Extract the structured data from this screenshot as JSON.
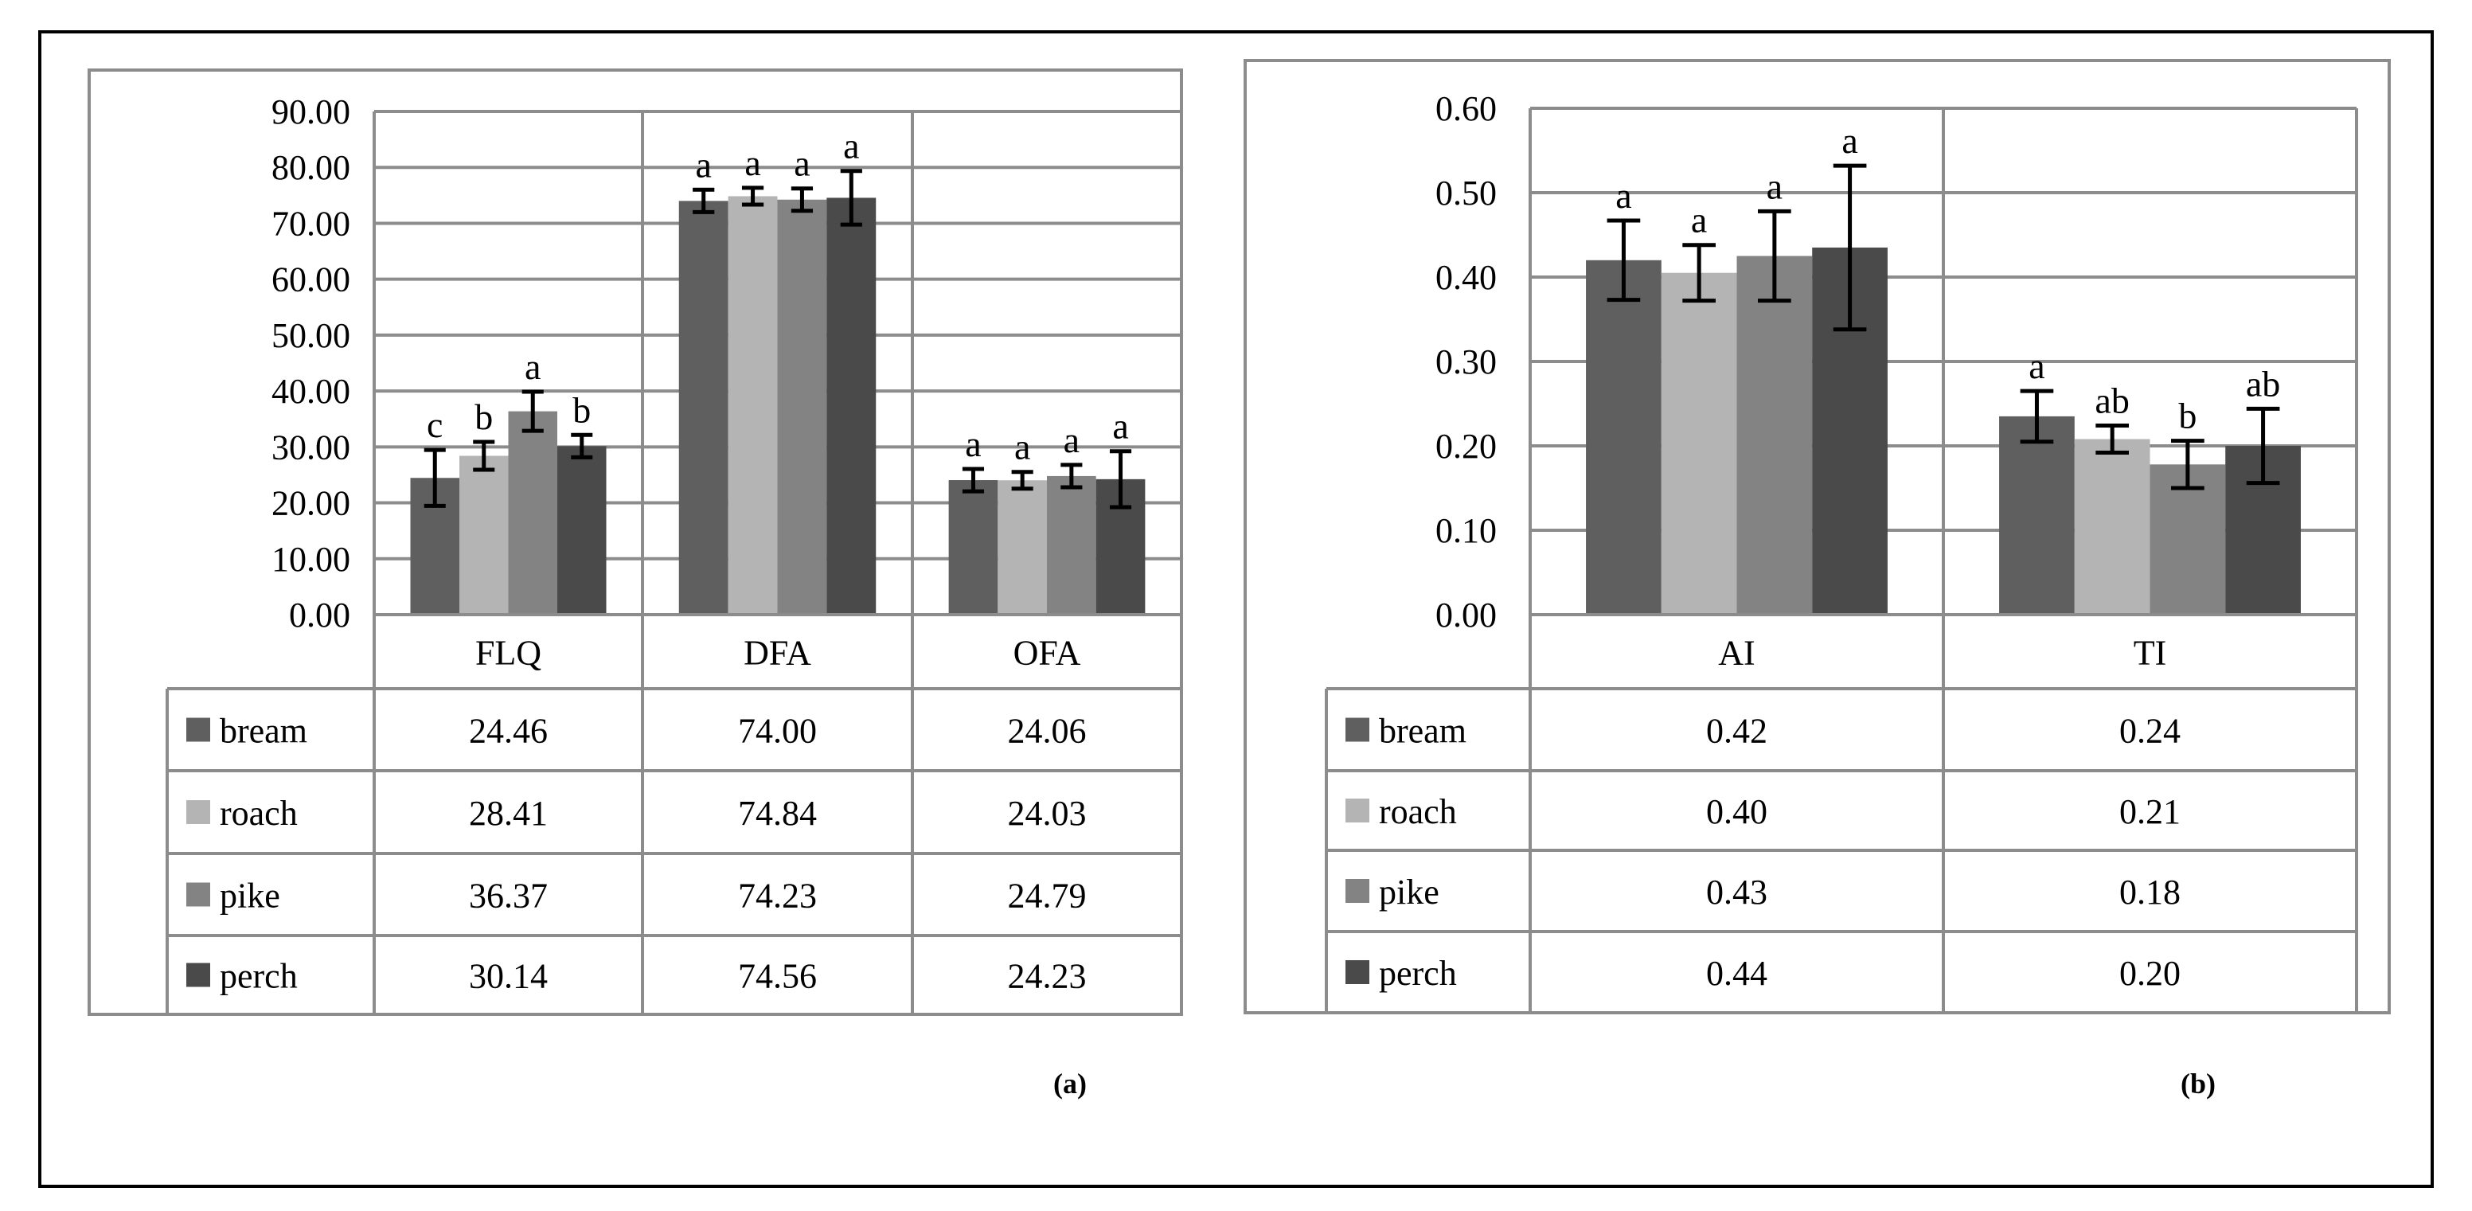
{
  "colors": {
    "bream": "#5f5f5f",
    "roach": "#b4b4b4",
    "pike": "#838383",
    "perch": "#4a4a4a",
    "grid": "#8c8c8c",
    "text": "#000000"
  },
  "chart_data": [
    {
      "type": "bar",
      "panel_label": "(a)",
      "categories": [
        "FLQ",
        "DFA",
        "OFA"
      ],
      "ylim": [
        0,
        90
      ],
      "y_ticks": [
        "0.00",
        "10.00",
        "20.00",
        "30.00",
        "40.00",
        "50.00",
        "60.00",
        "70.00",
        "80.00",
        "90.00"
      ],
      "grid": true,
      "legend_placement": "data-table-left",
      "series": [
        {
          "name": "bream",
          "color_key": "bream",
          "values": [
            24.46,
            74.0,
            24.06
          ],
          "table_values": [
            "24.46",
            "74.00",
            "24.06"
          ],
          "errors": [
            5.0,
            2.0,
            2.0
          ],
          "letters": [
            "c",
            "a",
            "a"
          ]
        },
        {
          "name": "roach",
          "color_key": "roach",
          "values": [
            28.41,
            74.84,
            24.03
          ],
          "table_values": [
            "28.41",
            "74.84",
            "24.03"
          ],
          "errors": [
            2.5,
            1.5,
            1.5
          ],
          "letters": [
            "b",
            "a",
            "a"
          ]
        },
        {
          "name": "pike",
          "color_key": "pike",
          "values": [
            36.37,
            74.23,
            24.79
          ],
          "table_values": [
            "36.37",
            "74.23",
            "24.79"
          ],
          "errors": [
            3.5,
            2.0,
            2.0
          ],
          "letters": [
            "a",
            "a",
            "a"
          ]
        },
        {
          "name": "perch",
          "color_key": "perch",
          "values": [
            30.14,
            74.56,
            24.23
          ],
          "table_values": [
            "30.14",
            "74.56",
            "24.23"
          ],
          "errors": [
            2.0,
            4.8,
            5.0
          ],
          "letters": [
            "b",
            "a",
            "a"
          ]
        }
      ]
    },
    {
      "type": "bar",
      "panel_label": "(b)",
      "categories": [
        "AI",
        "TI"
      ],
      "ylim": [
        0,
        0.6
      ],
      "y_ticks": [
        "0.00",
        "0.10",
        "0.20",
        "0.30",
        "0.40",
        "0.50",
        "0.60"
      ],
      "grid": true,
      "legend_placement": "data-table-left",
      "series": [
        {
          "name": "bream",
          "color_key": "bream",
          "values": [
            0.42,
            0.235
          ],
          "table_values": [
            "0.42",
            "0.24"
          ],
          "errors": [
            0.047,
            0.03
          ],
          "letters": [
            "a",
            "a"
          ]
        },
        {
          "name": "roach",
          "color_key": "roach",
          "values": [
            0.405,
            0.208
          ],
          "table_values": [
            "0.40",
            "0.21"
          ],
          "errors": [
            0.033,
            0.016
          ],
          "letters": [
            "a",
            "ab"
          ]
        },
        {
          "name": "pike",
          "color_key": "pike",
          "values": [
            0.425,
            0.178
          ],
          "table_values": [
            "0.43",
            "0.18"
          ],
          "errors": [
            0.053,
            0.028
          ],
          "letters": [
            "a",
            "b"
          ]
        },
        {
          "name": "perch",
          "color_key": "perch",
          "values": [
            0.435,
            0.2
          ],
          "table_values": [
            "0.44",
            "0.20"
          ],
          "errors": [
            0.097,
            0.044
          ],
          "letters": [
            "a",
            "ab"
          ]
        }
      ]
    }
  ]
}
